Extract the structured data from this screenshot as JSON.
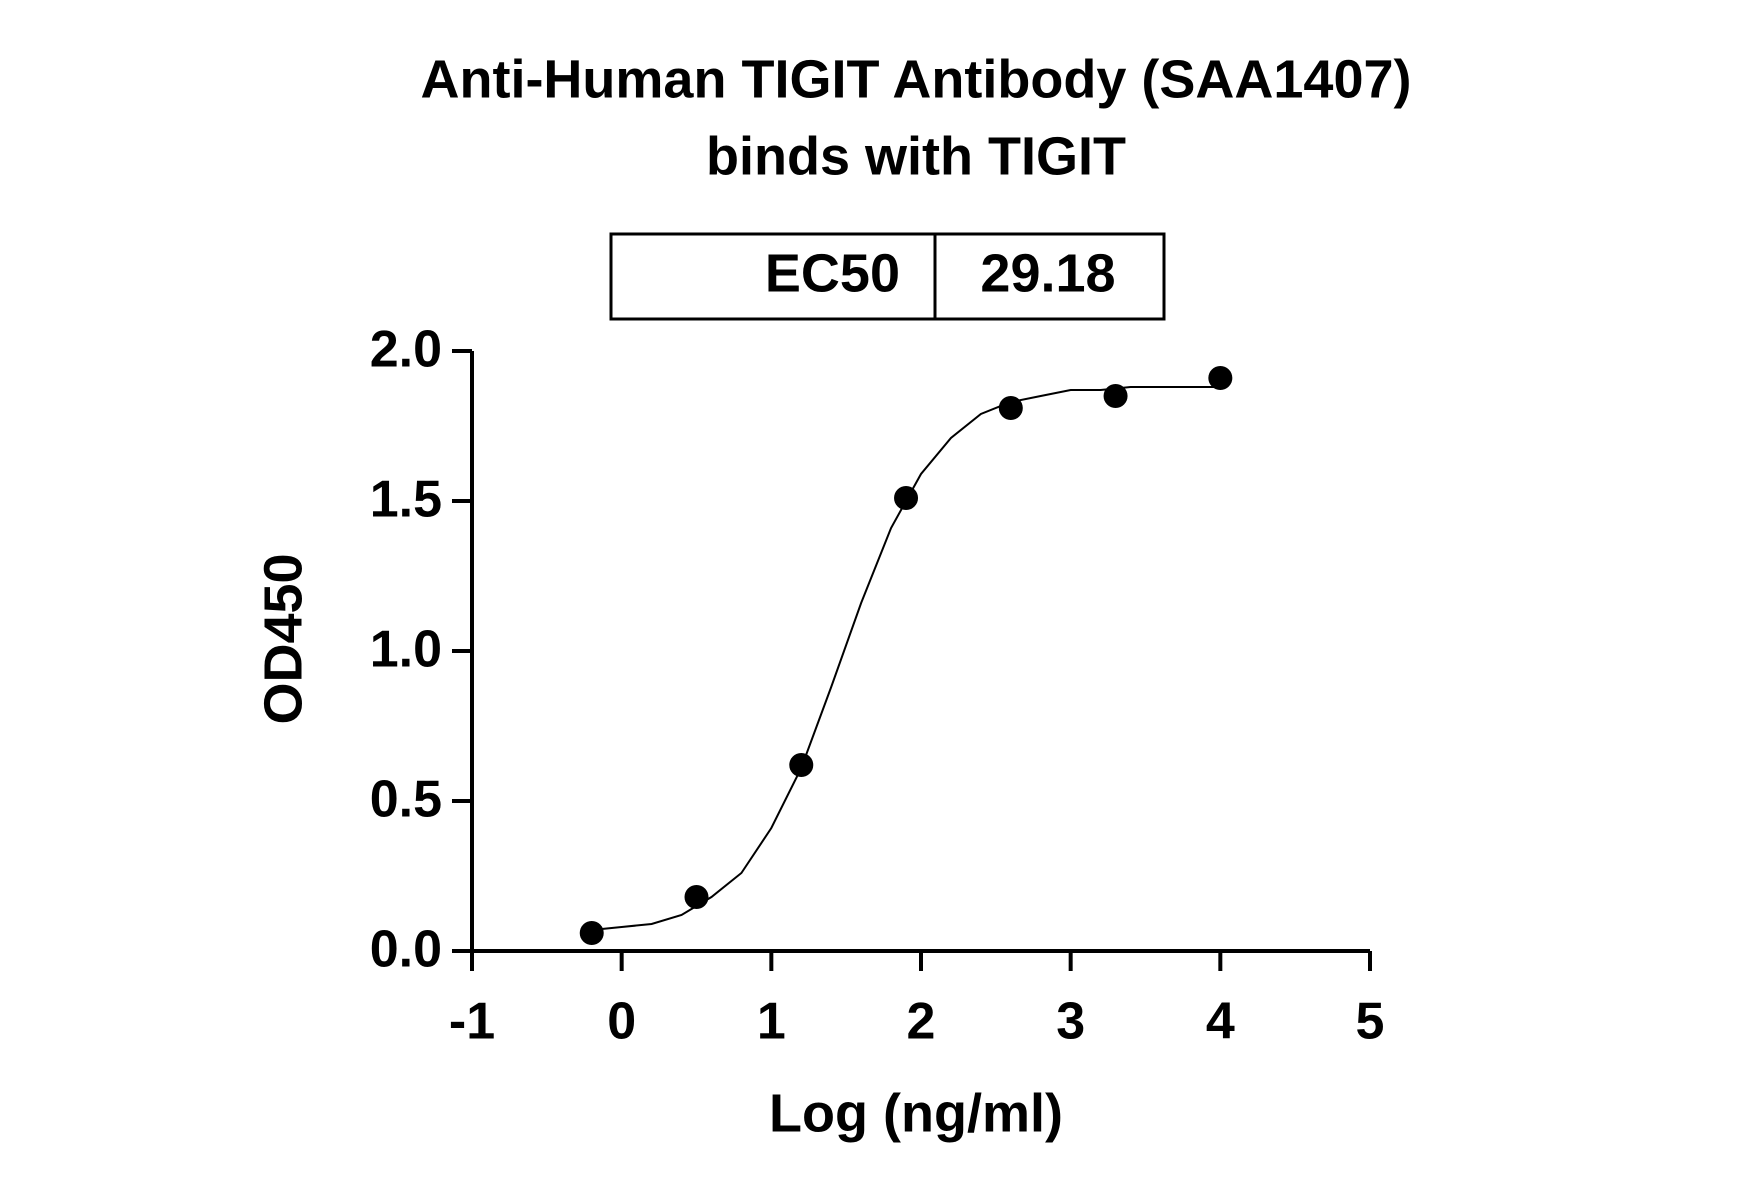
{
  "chart_data": {
    "type": "scatter",
    "title": "Anti-Human TIGIT Antibody (SAA1407)",
    "subtitle": "binds with TIGIT",
    "annotation": {
      "label": "EC50",
      "value": "29.18"
    },
    "x_label": "Log (ng/ml)",
    "y_label": "OD450",
    "color": "#000000",
    "x": [
      -0.2,
      0.5,
      1.2,
      1.9,
      2.6,
      3.3,
      4.0
    ],
    "values": [
      0.06,
      0.18,
      0.62,
      1.51,
      1.81,
      1.85,
      1.91
    ],
    "fit": {
      "x": [
        -0.2,
        0.0,
        0.2,
        0.4,
        0.6,
        0.8,
        1.0,
        1.2,
        1.4,
        1.6,
        1.8,
        2.0,
        2.2,
        2.4,
        2.6,
        2.8,
        3.0,
        3.2,
        3.4,
        3.6,
        3.8,
        4.0
      ],
      "values": [
        0.07,
        0.08,
        0.09,
        0.12,
        0.18,
        0.26,
        0.41,
        0.61,
        0.88,
        1.16,
        1.41,
        1.59,
        1.71,
        1.79,
        1.83,
        1.85,
        1.87,
        1.87,
        1.88,
        1.88,
        1.88,
        1.88
      ]
    },
    "xlim": [
      -1,
      5
    ],
    "xticks": [
      -1,
      0,
      1,
      2,
      3,
      4,
      5
    ],
    "ylim": [
      0,
      2
    ],
    "yticks": [
      {
        "value": 0,
        "label": "0.0"
      },
      {
        "value": 0.5,
        "label": "0.5"
      },
      {
        "value": 1,
        "label": "1.0"
      },
      {
        "value": 1.5,
        "label": "1.5"
      },
      {
        "value": 2,
        "label": "2.0"
      }
    ]
  }
}
